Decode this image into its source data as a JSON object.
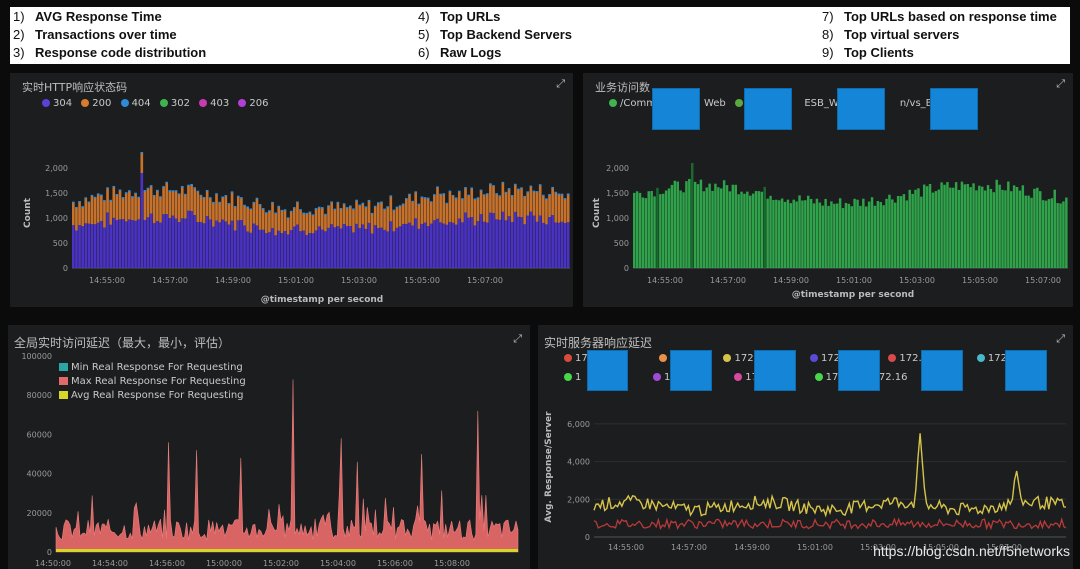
{
  "header": {
    "items": [
      {
        "num": "1)",
        "label": "AVG Response Time"
      },
      {
        "num": "2)",
        "label": "Transactions over time"
      },
      {
        "num": "3)",
        "label": "Response code distribution"
      },
      {
        "num": "4)",
        "label": "Top URLs"
      },
      {
        "num": "5)",
        "label": "Top Backend Servers"
      },
      {
        "num": "6)",
        "label": "Raw Logs"
      },
      {
        "num": "7)",
        "label": "Top URLs based on response time"
      },
      {
        "num": "8)",
        "label": "Top virtual servers"
      },
      {
        "num": "9)",
        "label": "Top Clients"
      }
    ]
  },
  "panels": {
    "p1": {
      "title": "实时HTTP响应状态码",
      "legend": [
        {
          "label": "304",
          "color": "#5b3fd6"
        },
        {
          "label": "200",
          "color": "#d97b2e"
        },
        {
          "label": "404",
          "color": "#2f8ad8"
        },
        {
          "label": "302",
          "color": "#3fb34f"
        },
        {
          "label": "403",
          "color": "#c83ab0"
        },
        {
          "label": "206",
          "color": "#b33fd6"
        }
      ]
    },
    "p2": {
      "title": "业务访问数",
      "legend": [
        {
          "label": "/Comm",
          "suffix": "Web",
          "color": "#3fb34f"
        },
        {
          "label": "/C",
          "suffix": "ESB_Web",
          "color": "#5aa83f"
        },
        {
          "label": "",
          "suffix": "n/vs_B2B_",
          "color": "#5aa83f"
        }
      ]
    },
    "p3": {
      "title": "全局实时访问延迟（最大，最小，评估）",
      "legend": [
        {
          "label": "Min Real Response For Requesting",
          "color": "#2aa6a6"
        },
        {
          "label": "Max Real Response For Requesting",
          "color": "#e06a6a"
        },
        {
          "label": "Avg Real Response For Requesting",
          "color": "#d6d62a"
        }
      ]
    },
    "p4": {
      "title": "实时服务器响应延迟",
      "legend_row1": [
        {
          "label": "17",
          "suffix": "1",
          "color": "#d84a3a"
        },
        {
          "label": "",
          "suffix": "",
          "color": "#e8914a"
        },
        {
          "label": "172.",
          "suffix": "",
          "color": "#d6c44a"
        },
        {
          "label": "172.",
          "suffix": "",
          "color": "#5a4ad6"
        },
        {
          "label": "172.",
          "suffix": "",
          "color": "#d84a4a"
        },
        {
          "label": "172.1",
          "suffix": "",
          "color": "#4ab8c8"
        }
      ],
      "legend_row2": [
        {
          "label": "1",
          "suffix": "5",
          "color": "#4ad64a"
        },
        {
          "label": "172",
          "suffix": "",
          "color": "#a04ad6"
        },
        {
          "label": "172.",
          "suffix": "",
          "color": "#d64aa0"
        },
        {
          "label": "172.1",
          "suffix": "",
          "color": "#4ad64a"
        },
        {
          "label": "172.16",
          "suffix": "",
          "color": "#d6d64a"
        }
      ]
    }
  },
  "chart_data": [
    {
      "type": "bar",
      "title": "实时HTTP响应状态码",
      "xlabel": "@timestamp per second",
      "ylabel": "Count",
      "ylim": [
        0,
        2300
      ],
      "yticks": [
        "2,000",
        "1,500",
        "1,000",
        "500",
        "0"
      ],
      "xticks": [
        "14:55:00",
        "14:57:00",
        "14:59:00",
        "15:01:00",
        "15:03:00",
        "15:05:00",
        "15:07:00"
      ],
      "series": [
        {
          "name": "304",
          "color": "#5b3fd6",
          "approx_mean": 820
        },
        {
          "name": "200",
          "color": "#d97b2e",
          "approx_mean": 420
        }
      ],
      "stacked_total_range": [
        1000,
        1600
      ],
      "spike": {
        "x": "14:56",
        "value": 2300
      }
    },
    {
      "type": "bar",
      "title": "业务访问数",
      "xlabel": "@timestamp per second",
      "ylabel": "Count",
      "ylim": [
        0,
        2300
      ],
      "yticks": [
        "2,000",
        "1,500",
        "1,000",
        "500",
        "0"
      ],
      "xticks": [
        "14:55:00",
        "14:57:00",
        "14:59:00",
        "15:01:00",
        "15:03:00",
        "15:05:00",
        "15:07:00"
      ],
      "series": [
        {
          "name": "",
          "color": "#3fb34f",
          "approx_range": [
            1150,
            1700
          ]
        }
      ]
    },
    {
      "type": "area",
      "title": "全局实时访问延迟（最大，最小，评估）",
      "ylim": [
        0,
        100000
      ],
      "yticks": [
        "100000",
        "80000",
        "60000",
        "40000",
        "20000",
        "0"
      ],
      "xticks": [
        "14:50:00",
        "14:54:00",
        "14:56:00",
        "15:00:00",
        "15:02:00",
        "15:04:00",
        "15:06:00",
        "15:08:00"
      ],
      "series": [
        {
          "name": "Max Real Response For Requesting",
          "color": "#e06a6a",
          "approx_range": [
            5000,
            88000
          ]
        },
        {
          "name": "Avg Real Response For Requesting",
          "color": "#d6d62a",
          "approx_value": 500
        }
      ]
    },
    {
      "type": "line",
      "title": "实时服务器响应延迟",
      "ylabel": "Avg. Response/Server",
      "ylim": [
        0,
        7000
      ],
      "yticks": [
        "6,000",
        "4,000",
        "2,000",
        "0"
      ],
      "xticks": [
        "14:55:00",
        "14:57:00",
        "14:59:00",
        "15:01:00",
        "15:03:00",
        "15:05:00",
        "15:07:00"
      ],
      "series": [
        {
          "name": "",
          "color": "#d6c44a",
          "approx_range": [
            900,
            5500
          ]
        },
        {
          "name": "",
          "color": "#d84a4a",
          "approx_range": [
            200,
            1000
          ]
        }
      ]
    }
  ],
  "watermark": "https://blog.csdn.net/f5networks"
}
